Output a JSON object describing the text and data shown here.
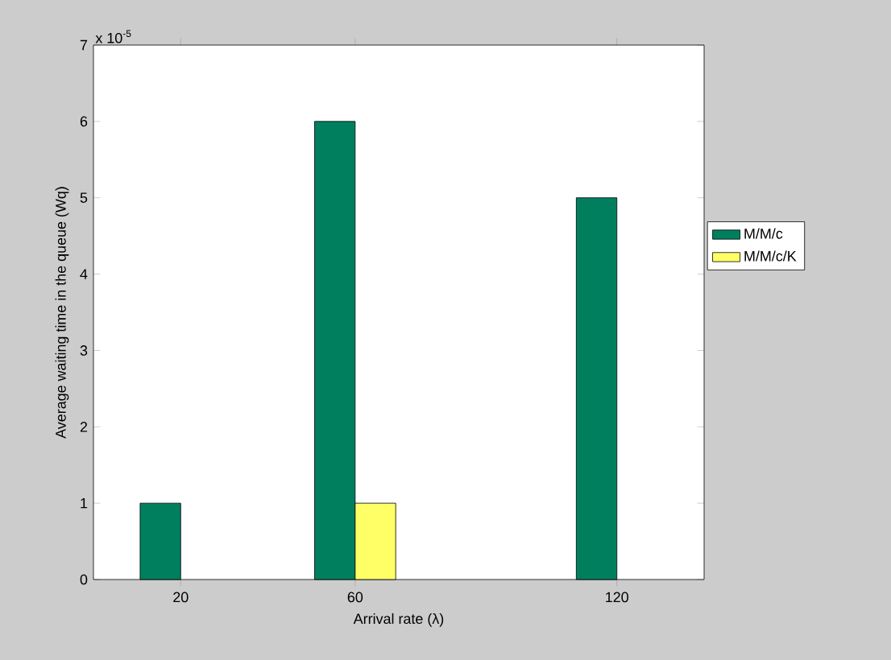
{
  "chart_data": {
    "type": "bar",
    "xlabel": "Arrival rate (λ)",
    "ylabel": "Average waiting time in the queue (Wq)",
    "x": [
      20,
      60,
      120
    ],
    "series": [
      {
        "name": "M/M/c",
        "color": "#007f5f",
        "values": [
          1,
          6,
          5
        ]
      },
      {
        "name": "M/M/c/K",
        "color": "#ffff66",
        "values": [
          null,
          1,
          null
        ]
      }
    ],
    "xlim": [
      0,
      140
    ],
    "xticks": [
      20,
      60,
      120
    ],
    "ylim": [
      0,
      7
    ],
    "yticks": [
      0,
      1,
      2,
      3,
      4,
      5,
      6,
      7
    ],
    "annotations": [
      "x 10$^{-5}$"
    ],
    "legend": "right",
    "grid": false
  }
}
